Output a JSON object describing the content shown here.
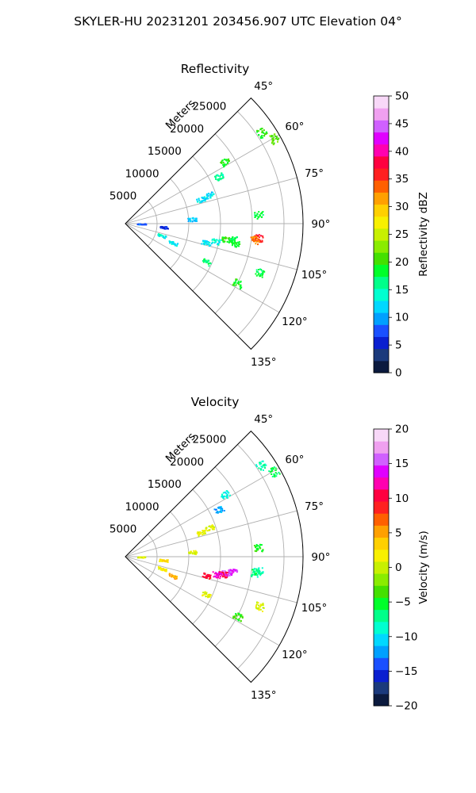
{
  "figure": {
    "suptitle": "SKYLER-HU  20231201  203456.907 UTC Elevation 04°"
  },
  "chart_data": [
    {
      "type": "polar-sector",
      "title": "Reflectivity",
      "radial_label": "Meters",
      "radial_ticks": [
        5000,
        10000,
        15000,
        20000,
        25000
      ],
      "radial_tick_labels": [
        "5000",
        "10000",
        "15000",
        "20000",
        "25000"
      ],
      "theta_ticks_deg": [
        45,
        60,
        75,
        90,
        105,
        120,
        135
      ],
      "theta_tick_labels": [
        "45°",
        "60°",
        "75°",
        "90°",
        "105°",
        "120°",
        "135°"
      ],
      "theta_range_deg": [
        45,
        135
      ],
      "r_max": 28000,
      "grid": true,
      "colorbar": {
        "label": "Reflectivity dBZ",
        "range": [
          0,
          50
        ],
        "ticks": [
          0,
          5,
          10,
          15,
          20,
          25,
          30,
          35,
          40,
          45,
          50
        ],
        "tick_labels": [
          "0",
          "5",
          "10",
          "15",
          "20",
          "25",
          "30",
          "35",
          "40",
          "45",
          "50"
        ],
        "colors": [
          "#0b1a3e",
          "#1b3a7c",
          "#0a1fd0",
          "#1a50ff",
          "#00a0ff",
          "#00d8ff",
          "#00ffd0",
          "#00ff8a",
          "#00ff2a",
          "#44e000",
          "#8aec00",
          "#c8f000",
          "#f8f000",
          "#ffd000",
          "#ffa000",
          "#ff6000",
          "#ff2020",
          "#ff0040",
          "#ff00b0",
          "#e000ff",
          "#d060ff",
          "#f0a0f0",
          "#f8d8f8"
        ]
      },
      "echoes": [
        {
          "theta": 98,
          "r": 17000,
          "value": 18
        },
        {
          "theta": 99,
          "r": 16000,
          "value": 20
        },
        {
          "theta": 100,
          "r": 17500,
          "value": 19
        },
        {
          "theta": 96,
          "r": 21000,
          "value": 36
        },
        {
          "theta": 97,
          "r": 20500,
          "value": 33
        },
        {
          "theta": 101,
          "r": 14500,
          "value": 14
        },
        {
          "theta": 103,
          "r": 13000,
          "value": 13
        },
        {
          "theta": 56,
          "r": 25800,
          "value": 20
        },
        {
          "theta": 60,
          "r": 27000,
          "value": 21
        },
        {
          "theta": 71,
          "r": 14000,
          "value": 12
        },
        {
          "theta": 72,
          "r": 12500,
          "value": 12
        },
        {
          "theta": 86,
          "r": 10500,
          "value": 11
        },
        {
          "theta": 90,
          "r": 2500,
          "value": 8
        },
        {
          "theta": 95,
          "r": 6000,
          "value": 6
        },
        {
          "theta": 108,
          "r": 6000,
          "value": 14
        },
        {
          "theta": 112,
          "r": 8000,
          "value": 13
        },
        {
          "theta": 115,
          "r": 14000,
          "value": 17
        },
        {
          "theta": 118,
          "r": 20000,
          "value": 19
        },
        {
          "theta": 110,
          "r": 22500,
          "value": 18
        },
        {
          "theta": 63,
          "r": 16500,
          "value": 16
        },
        {
          "theta": 58,
          "r": 18500,
          "value": 19
        },
        {
          "theta": 86,
          "r": 21000,
          "value": 18
        }
      ]
    },
    {
      "type": "polar-sector",
      "title": "Velocity",
      "radial_label": "Meters",
      "radial_ticks": [
        5000,
        10000,
        15000,
        20000,
        25000
      ],
      "radial_tick_labels": [
        "5000",
        "10000",
        "15000",
        "20000",
        "25000"
      ],
      "theta_ticks_deg": [
        45,
        60,
        75,
        90,
        105,
        120,
        135
      ],
      "theta_tick_labels": [
        "45°",
        "60°",
        "75°",
        "90°",
        "105°",
        "120°",
        "135°"
      ],
      "theta_range_deg": [
        45,
        135
      ],
      "r_max": 28000,
      "grid": true,
      "colorbar": {
        "label": "Velocity (m/s)",
        "range": [
          -20,
          20
        ],
        "ticks": [
          -20,
          -15,
          -10,
          -5,
          0,
          5,
          10,
          15,
          20
        ],
        "tick_labels": [
          "−20",
          "−15",
          "−10",
          "−5",
          "0",
          "5",
          "10",
          "15",
          "20"
        ],
        "colors": [
          "#0b1a3e",
          "#1b3a7c",
          "#0a1fd0",
          "#1a50ff",
          "#00a0ff",
          "#00d8ff",
          "#00ffd0",
          "#00ff8a",
          "#00ff2a",
          "#44e000",
          "#8aec00",
          "#c8f000",
          "#f8f000",
          "#ffd000",
          "#ffa000",
          "#ff6000",
          "#ff2020",
          "#ff0040",
          "#ff00b0",
          "#e000ff",
          "#d060ff",
          "#f0a0f0",
          "#f8d8f8"
        ]
      },
      "echoes": [
        {
          "theta": 98,
          "r": 17000,
          "value": 14
        },
        {
          "theta": 99,
          "r": 16000,
          "value": 15
        },
        {
          "theta": 100,
          "r": 15500,
          "value": 11
        },
        {
          "theta": 96,
          "r": 21000,
          "value": -8
        },
        {
          "theta": 97,
          "r": 20500,
          "value": -7
        },
        {
          "theta": 101,
          "r": 14500,
          "value": 13
        },
        {
          "theta": 103,
          "r": 13000,
          "value": 10
        },
        {
          "theta": 56,
          "r": 25800,
          "value": -8
        },
        {
          "theta": 60,
          "r": 27000,
          "value": -6
        },
        {
          "theta": 71,
          "r": 14000,
          "value": 1
        },
        {
          "theta": 72,
          "r": 12500,
          "value": 1
        },
        {
          "theta": 86,
          "r": 10500,
          "value": 0
        },
        {
          "theta": 90,
          "r": 2500,
          "value": 1
        },
        {
          "theta": 95,
          "r": 6000,
          "value": 3
        },
        {
          "theta": 108,
          "r": 6000,
          "value": 2
        },
        {
          "theta": 112,
          "r": 8000,
          "value": 5
        },
        {
          "theta": 115,
          "r": 14000,
          "value": 1
        },
        {
          "theta": 118,
          "r": 20000,
          "value": -4
        },
        {
          "theta": 110,
          "r": 22500,
          "value": 0
        },
        {
          "theta": 63,
          "r": 16500,
          "value": -12
        },
        {
          "theta": 58,
          "r": 18500,
          "value": -9
        },
        {
          "theta": 86,
          "r": 21000,
          "value": -5
        }
      ]
    }
  ]
}
